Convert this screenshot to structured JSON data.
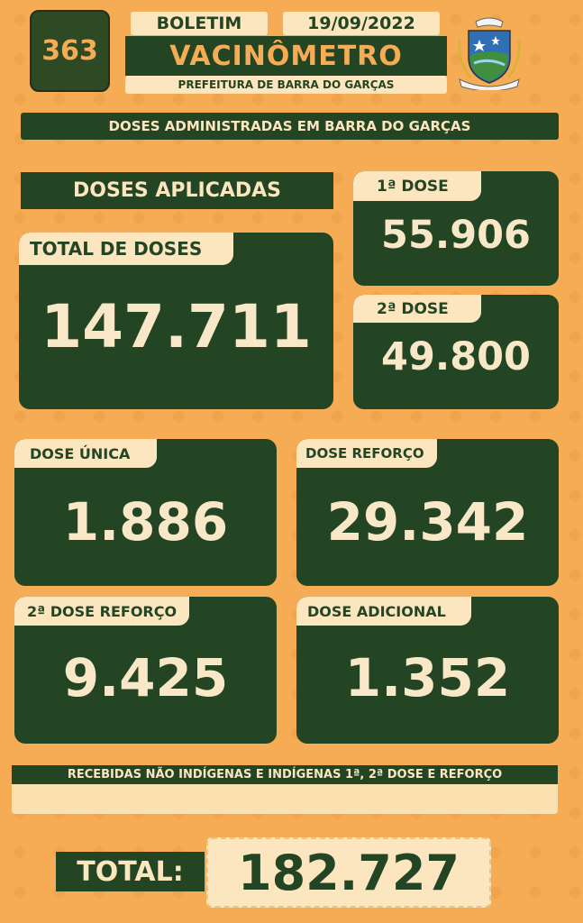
{
  "header": {
    "bulletin_number": "363",
    "boletim_label": "BOLETIM",
    "date": "19/09/2022",
    "title": "VACINÔMETRO",
    "subtitle": "PREFEITURA DE BARRA DO GARÇAS",
    "crest_icon": "municipal-coat-of-arms"
  },
  "banner": "DOSES ADMINISTRADAS EM BARRA DO GARÇAS",
  "doses_aplicadas_label": "DOSES APLICADAS",
  "cards": {
    "total": {
      "label": "TOTAL DE DOSES",
      "value": "147.711"
    },
    "dose1": {
      "label": "1ª DOSE",
      "value": "55.906"
    },
    "dose2": {
      "label": "2ª DOSE",
      "value": "49.800"
    },
    "unica": {
      "label": "DOSE ÚNICA",
      "value": "1.886"
    },
    "reforco": {
      "label": "DOSE REFORÇO",
      "value": "29.342"
    },
    "reforco2": {
      "label": "2ª DOSE REFORÇO",
      "value": "9.425"
    },
    "adicional": {
      "label": "DOSE ADICIONAL",
      "value": "1.352"
    }
  },
  "recebidas_label": "RECEBIDAS NÃO INDÍGENAS E INDÍGENAS 1ª, 2ª DOSE E REFORÇO",
  "total": {
    "label": "TOTAL:",
    "value": "182.727"
  },
  "colors": {
    "background": "#f6ac54",
    "dark_green": "#234524",
    "cream": "#fbe6bf"
  }
}
